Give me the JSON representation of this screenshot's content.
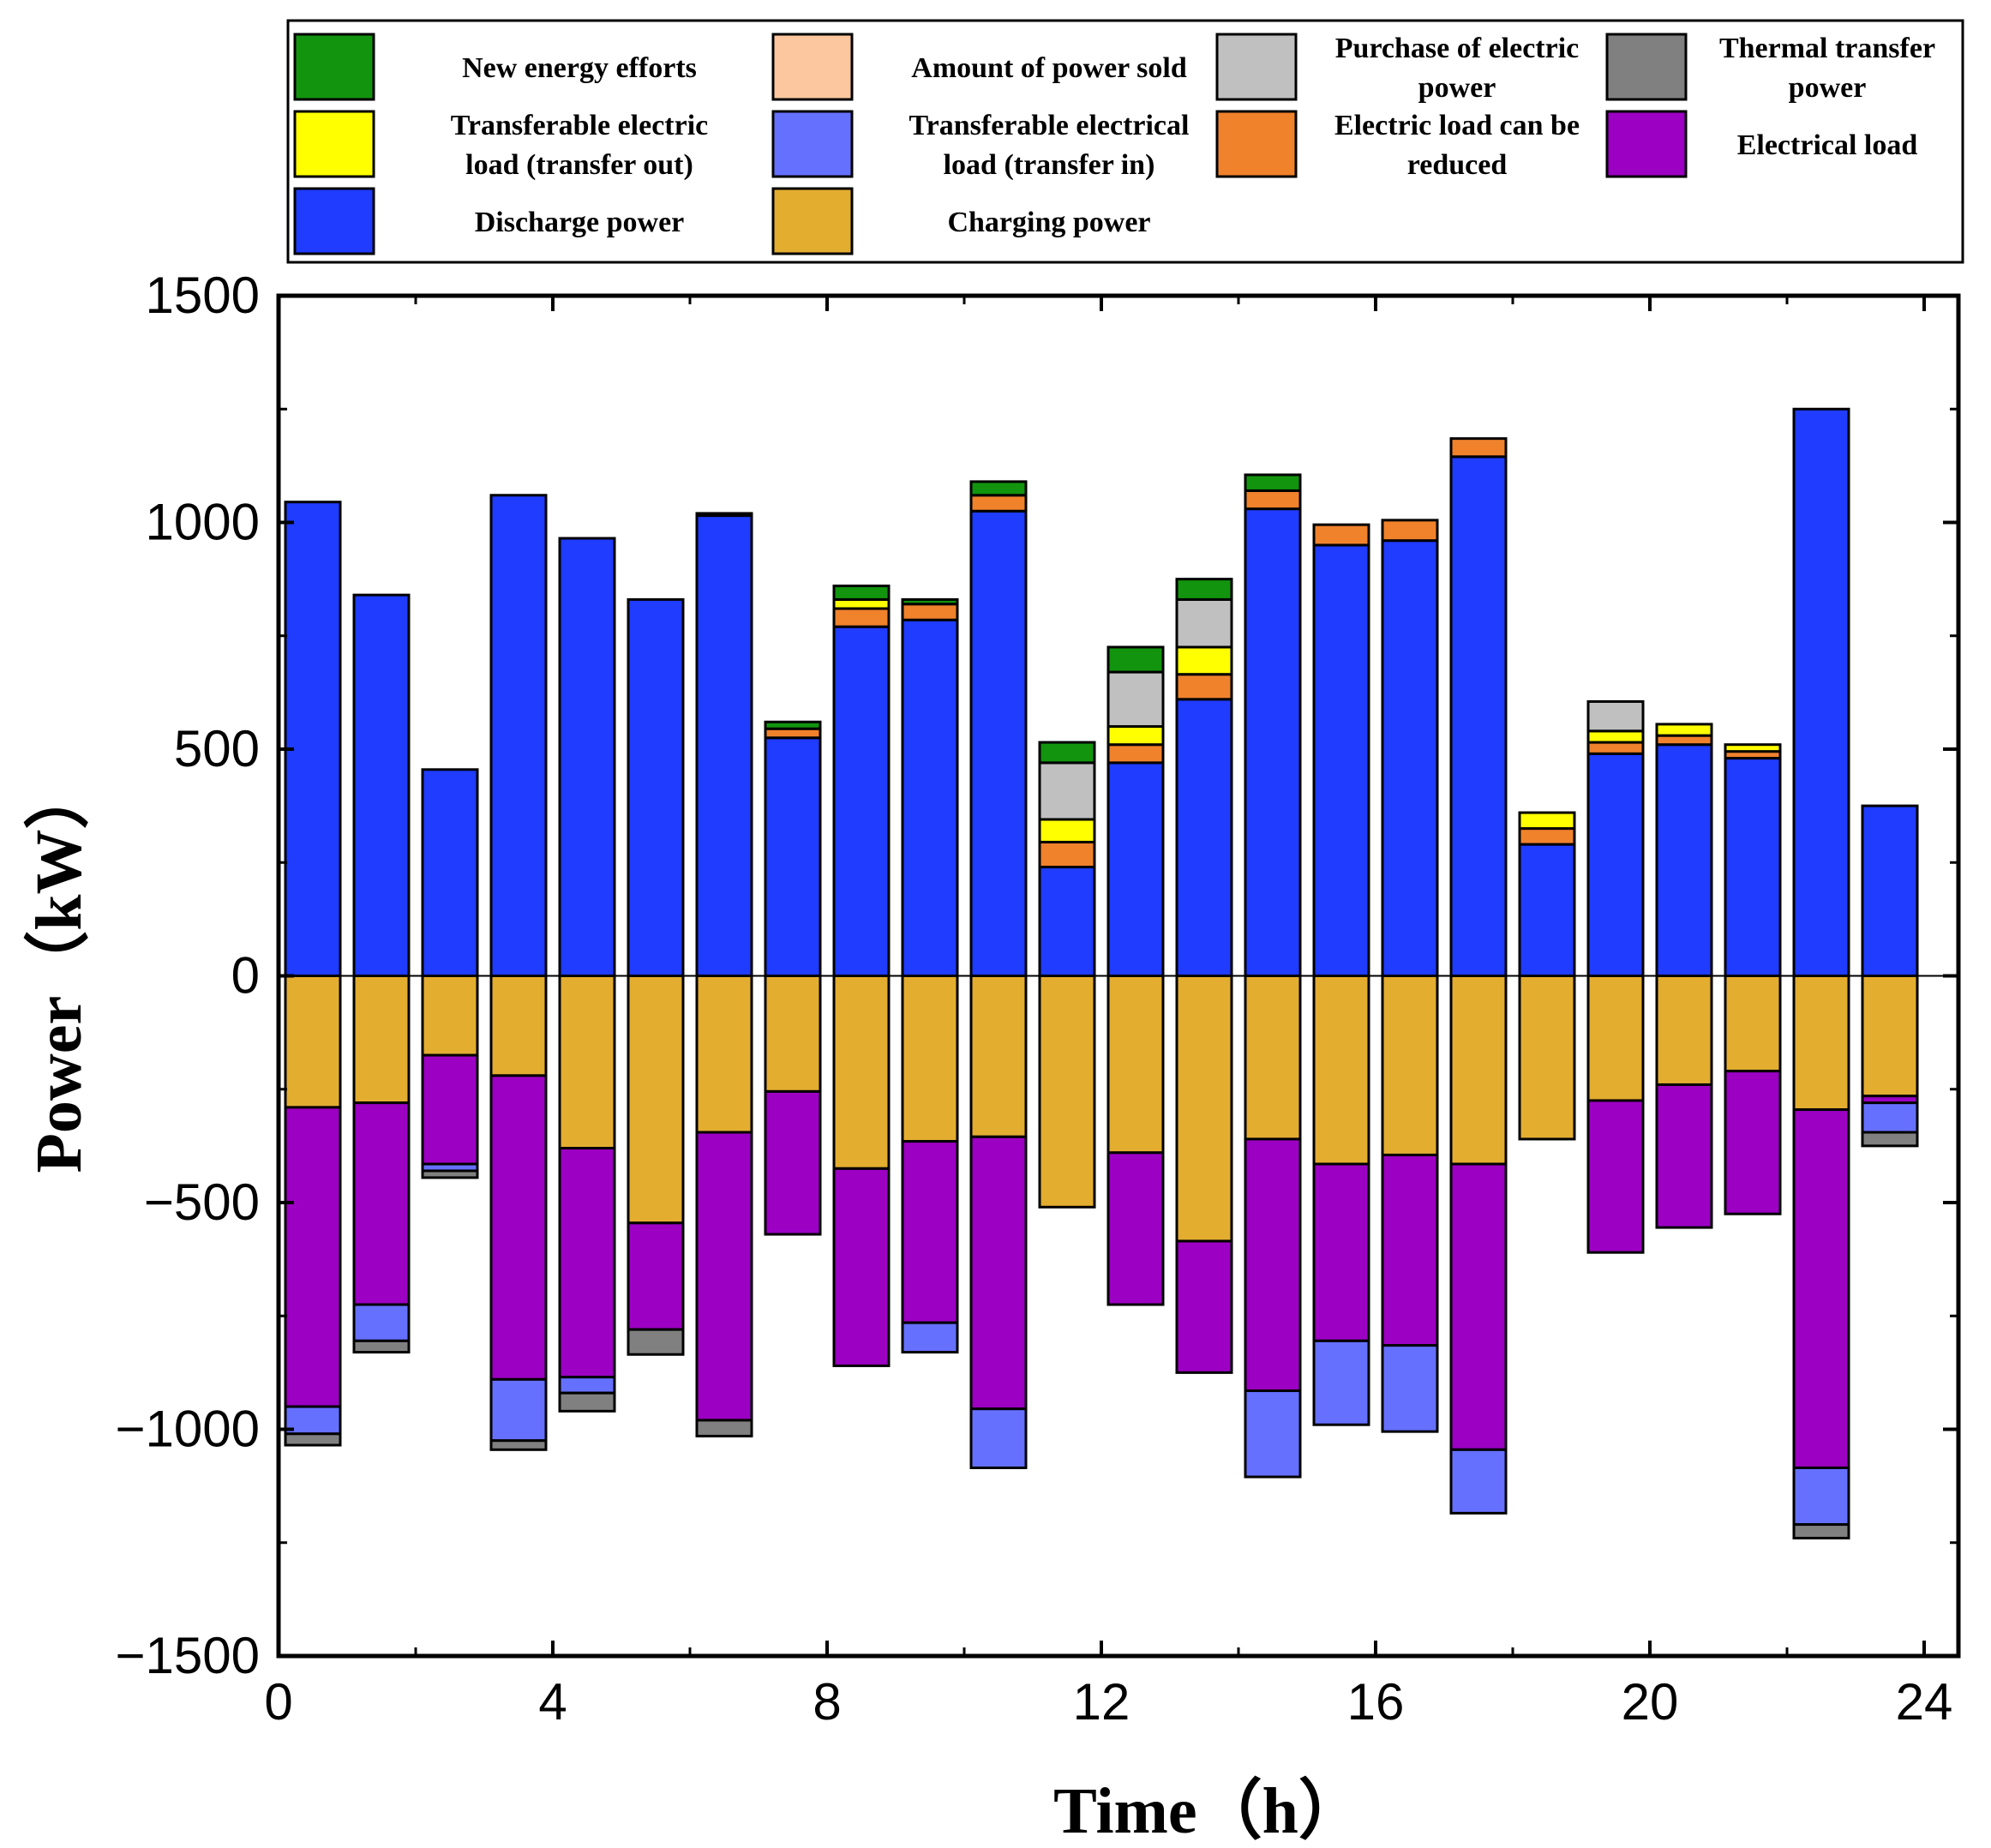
{
  "chart_data": {
    "type": "bar",
    "stacked": true,
    "xlabel": "Time（h）",
    "ylabel": "Power（kW）",
    "ylim": [
      -1500,
      1500
    ],
    "xlim": [
      0,
      24.5
    ],
    "xticks": [
      0,
      4,
      8,
      12,
      16,
      20,
      24
    ],
    "yticks": [
      -1500,
      -1000,
      -500,
      0,
      500,
      1000,
      1500
    ],
    "x": [
      1,
      2,
      3,
      4,
      5,
      6,
      7,
      8,
      9,
      10,
      11,
      12,
      13,
      14,
      15,
      16,
      17,
      18,
      19,
      20,
      21,
      22,
      23,
      24
    ],
    "legend": [
      {
        "key": "new_energy",
        "label": [
          "New energy efforts"
        ],
        "color": "#12940e"
      },
      {
        "key": "power_sold",
        "label": [
          "Amount of power sold"
        ],
        "color": "#fcc79e"
      },
      {
        "key": "purchase",
        "label": [
          "Purchase of electric",
          "power"
        ],
        "color": "#c0c0c0"
      },
      {
        "key": "thermal",
        "label": [
          "Thermal transfer",
          "power"
        ],
        "color": "#808080"
      },
      {
        "key": "transfer_out",
        "label": [
          "Transferable electric",
          "load (transfer out)"
        ],
        "color": "#ffff00"
      },
      {
        "key": "transfer_in",
        "label": [
          "Transferable electrical",
          "load (transfer in)"
        ],
        "color": "#6670ff"
      },
      {
        "key": "reducible",
        "label": [
          "Electric load can be",
          "reduced"
        ],
        "color": "#f0822c"
      },
      {
        "key": "electrical_load",
        "label": [
          "Electrical load"
        ],
        "color": "#9c00c3"
      },
      {
        "key": "discharge",
        "label": [
          "Discharge power"
        ],
        "color": "#1f3cff"
      },
      {
        "key": "charging",
        "label": [
          "Charging power"
        ],
        "color": "#e3ad30"
      }
    ],
    "positive_stack_order": [
      "discharge",
      "reducible",
      "transfer_out",
      "purchase",
      "new_energy"
    ],
    "negative_stack_order": [
      "charging",
      "electrical_load",
      "transfer_in",
      "thermal"
    ],
    "series": [
      {
        "key": "discharge",
        "name": "Discharge power",
        "values": [
          1045,
          840,
          455,
          1060,
          965,
          830,
          1015,
          525,
          770,
          785,
          1025,
          240,
          470,
          610,
          1030,
          950,
          960,
          1145,
          290,
          490,
          510,
          480,
          1250,
          375
        ]
      },
      {
        "key": "reducible",
        "name": "Electric load can be reduced",
        "values": [
          0,
          0,
          0,
          0,
          0,
          0,
          0,
          20,
          40,
          35,
          35,
          55,
          40,
          55,
          40,
          45,
          45,
          40,
          35,
          25,
          20,
          15,
          0,
          0
        ]
      },
      {
        "key": "transfer_out",
        "name": "Transferable electric load (transfer out)",
        "values": [
          0,
          0,
          0,
          0,
          0,
          0,
          0,
          0,
          20,
          0,
          0,
          50,
          40,
          60,
          0,
          0,
          0,
          0,
          35,
          25,
          25,
          15,
          0,
          0
        ]
      },
      {
        "key": "purchase",
        "name": "Purchase of electric power",
        "values": [
          0,
          0,
          0,
          0,
          0,
          0,
          0,
          0,
          0,
          0,
          0,
          125,
          120,
          105,
          0,
          0,
          0,
          0,
          0,
          65,
          0,
          0,
          0,
          0
        ]
      },
      {
        "key": "new_energy",
        "name": "New energy efforts",
        "values": [
          0,
          0,
          0,
          0,
          0,
          0,
          5,
          15,
          30,
          10,
          30,
          45,
          55,
          45,
          35,
          0,
          0,
          0,
          0,
          0,
          0,
          0,
          0,
          0
        ]
      },
      {
        "key": "charging",
        "name": "Charging power",
        "values": [
          -290,
          -280,
          -175,
          -220,
          -380,
          -545,
          -345,
          -255,
          -425,
          -365,
          -355,
          -510,
          -390,
          -585,
          -360,
          -415,
          -395,
          -415,
          -360,
          -275,
          -240,
          -210,
          -295,
          -265
        ]
      },
      {
        "key": "electrical_load",
        "name": "Electrical load",
        "values": [
          -660,
          -445,
          -240,
          -670,
          -505,
          -235,
          -635,
          -315,
          -435,
          -400,
          -600,
          0,
          -335,
          -290,
          -555,
          -390,
          -420,
          -630,
          0,
          -335,
          -315,
          -315,
          -790,
          -15
        ]
      },
      {
        "key": "transfer_in",
        "name": "Transferable electrical load (transfer in)",
        "values": [
          -60,
          -80,
          -15,
          -135,
          -35,
          0,
          0,
          0,
          0,
          -65,
          -130,
          0,
          0,
          0,
          -190,
          -185,
          -190,
          -140,
          0,
          0,
          0,
          0,
          -125,
          -65
        ]
      },
      {
        "key": "thermal",
        "name": "Thermal transfer power",
        "values": [
          -25,
          -25,
          -15,
          -20,
          -40,
          -55,
          -35,
          0,
          0,
          0,
          0,
          0,
          0,
          0,
          0,
          0,
          0,
          0,
          0,
          0,
          0,
          0,
          -30,
          -30
        ]
      }
    ]
  }
}
